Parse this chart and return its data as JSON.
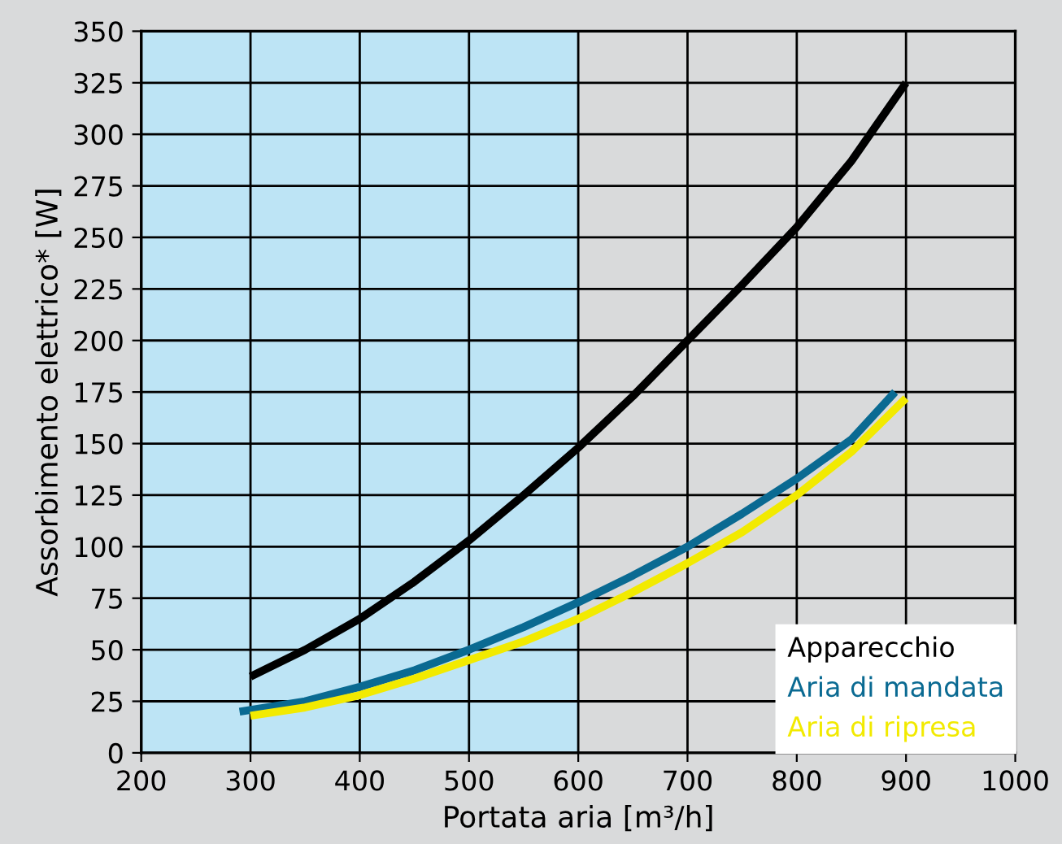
{
  "chart_data": {
    "type": "line",
    "xlabel": "Portata aria [m³/h]",
    "ylabel": "Assorbimento elettrico* [W]",
    "xlim": [
      200,
      1000
    ],
    "ylim": [
      0,
      350
    ],
    "xticks": [
      200,
      300,
      400,
      500,
      600,
      700,
      800,
      900,
      1000
    ],
    "yticks": [
      0,
      25,
      50,
      75,
      100,
      125,
      150,
      175,
      200,
      225,
      250,
      275,
      300,
      325,
      350
    ],
    "grid": true,
    "legend": "bottom right",
    "marker": "none",
    "line_style": "solid",
    "bands": [
      {
        "axis": "x",
        "from": 200,
        "to": 600,
        "color": "#bde4f5"
      }
    ],
    "series": [
      {
        "name": "Apparecchio",
        "color": "#000000",
        "x": [
          300,
          350,
          400,
          450,
          500,
          550,
          600,
          650,
          700,
          750,
          800,
          850,
          900
        ],
        "values": [
          37,
          50,
          65,
          83,
          103,
          125,
          148,
          173,
          200,
          227,
          255,
          287,
          325
        ]
      },
      {
        "name": "Aria di mandata",
        "color": "#0a6a92",
        "x": [
          290,
          350,
          400,
          450,
          500,
          550,
          600,
          650,
          700,
          750,
          800,
          850,
          890
        ],
        "values": [
          20,
          25,
          32,
          40,
          50,
          61,
          73,
          86,
          100,
          116,
          133,
          152,
          175
        ]
      },
      {
        "name": "Aria di ripresa",
        "color": "#f2ea00",
        "x": [
          300,
          350,
          400,
          450,
          500,
          550,
          600,
          650,
          700,
          750,
          800,
          850,
          900
        ],
        "values": [
          18,
          22,
          28,
          36,
          45,
          54,
          65,
          78,
          92,
          107,
          125,
          146,
          172
        ]
      }
    ]
  }
}
